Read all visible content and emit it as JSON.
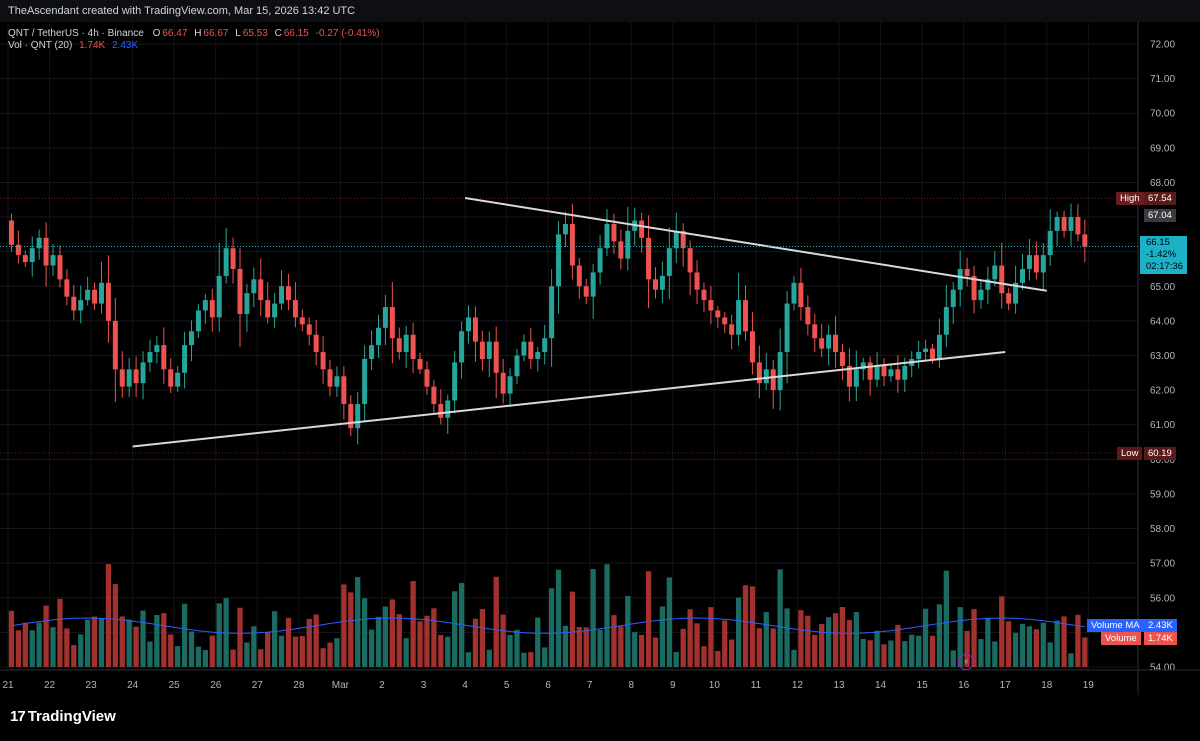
{
  "header": {
    "credit": "TheAscendant created with TradingView.com, Mar 15, 2026 13:42 UTC"
  },
  "legend": {
    "symbol": "QNT / TetherUS · 4h · Binance",
    "o_label": "O",
    "o": "66.47",
    "h_label": "H",
    "h": "66.67",
    "l_label": "L",
    "l": "65.53",
    "c_label": "C",
    "c": "66.15",
    "change": "-0.27 (-0.41%)",
    "vol_label": "Vol · QNT (20)",
    "vol": "1.74K",
    "vol_ma": "2.43K"
  },
  "price_axis": {
    "ticks": [
      "72.00",
      "71.00",
      "70.00",
      "69.00",
      "68.00",
      "67.00",
      "66.00",
      "65.00",
      "64.00",
      "63.00",
      "62.00",
      "61.00",
      "60.00",
      "59.00",
      "58.00",
      "57.00",
      "56.00",
      "55.00",
      "54.00"
    ],
    "high_label": "High",
    "high_value": "67.54",
    "low_label": "Low",
    "low_value": "60.19",
    "marker_67": "67.04",
    "last_price": "66.15",
    "last_change": "-1.42%",
    "countdown": "02:17:36",
    "volume_ma_label": "Volume MA",
    "volume_ma_value": "2.43K",
    "volume_label": "Volume",
    "volume_value": "1.74K"
  },
  "time_axis": [
    "21",
    "22",
    "23",
    "24",
    "25",
    "26",
    "27",
    "28",
    "Mar",
    "2",
    "3",
    "4",
    "5",
    "6",
    "7",
    "8",
    "9",
    "10",
    "11",
    "12",
    "13",
    "14",
    "15",
    "16",
    "17",
    "18",
    "19"
  ],
  "colors": {
    "up": "#26a69a",
    "down": "#ef5350",
    "up_vol": "#1c6b63",
    "down_vol": "#a3322f",
    "trendline": "#d9d9d9",
    "ma": "#2962ff",
    "background": "#000000"
  },
  "brand": "TradingView",
  "chart_data": {
    "type": "candlestick",
    "symbol": "QNT / TetherUS",
    "interval": "4h",
    "exchange": "Binance",
    "y_range": [
      54,
      72.4
    ],
    "x_range": [
      "Feb 21",
      "Mar 19"
    ],
    "session_high": 67.54,
    "session_low": 60.19,
    "start_open": 66.9,
    "closes": [
      66.2,
      65.9,
      65.7,
      66.1,
      66.4,
      65.6,
      65.9,
      65.2,
      64.7,
      64.3,
      64.6,
      64.9,
      64.5,
      65.1,
      64.0,
      62.6,
      62.1,
      62.6,
      62.2,
      62.8,
      63.1,
      63.3,
      62.6,
      62.1,
      62.5,
      63.3,
      63.7,
      64.3,
      64.6,
      64.1,
      65.3,
      66.1,
      65.5,
      64.2,
      64.8,
      65.2,
      64.6,
      64.1,
      64.5,
      65.0,
      64.6,
      64.1,
      63.9,
      63.6,
      63.1,
      62.6,
      62.1,
      62.4,
      61.6,
      60.9,
      61.6,
      62.9,
      63.3,
      63.8,
      64.4,
      63.5,
      63.1,
      63.6,
      62.9,
      62.6,
      62.1,
      61.6,
      61.2,
      61.7,
      62.8,
      63.7,
      64.1,
      63.4,
      62.9,
      63.4,
      62.5,
      61.9,
      62.4,
      63.0,
      63.4,
      62.9,
      63.1,
      63.5,
      65.0,
      66.5,
      66.8,
      65.6,
      65.0,
      64.7,
      65.4,
      66.1,
      66.8,
      66.3,
      65.8,
      66.6,
      66.9,
      66.4,
      65.2,
      64.9,
      65.3,
      66.1,
      66.6,
      66.1,
      65.4,
      64.9,
      64.6,
      64.3,
      64.1,
      63.9,
      63.6,
      64.6,
      63.7,
      62.8,
      62.2,
      62.6,
      62.0,
      63.1,
      64.5,
      65.1,
      64.4,
      63.9,
      63.5,
      63.2,
      63.6,
      63.1,
      62.7,
      62.1,
      62.6,
      62.8,
      62.3,
      62.7,
      62.4,
      62.6,
      62.3,
      62.7,
      62.9,
      63.1,
      63.2,
      62.9,
      63.6,
      64.4,
      64.9,
      65.5,
      65.3,
      64.6,
      64.9,
      65.2,
      65.6,
      64.8,
      64.5,
      65.1,
      65.5,
      65.9,
      65.4,
      65.9,
      66.6,
      67.0,
      66.6,
      67.0,
      66.5,
      66.15
    ],
    "volume_ma_level": 2.43,
    "last_volume": 1.74,
    "trendlines": [
      {
        "name": "descending resistance",
        "from": [
          "Mar 4",
          67.55
        ],
        "to": [
          "Mar 18",
          64.87
        ]
      },
      {
        "name": "ascending support",
        "from": [
          "Feb 24",
          60.37
        ],
        "to": [
          "Mar 17",
          63.1
        ]
      }
    ]
  }
}
